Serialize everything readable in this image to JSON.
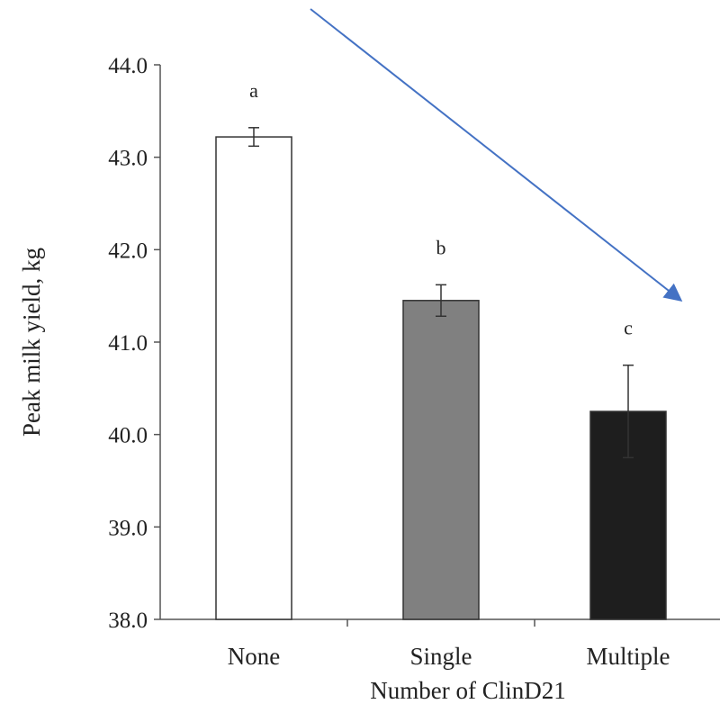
{
  "chart_data": {
    "type": "bar",
    "title": "",
    "xlabel": "Number of ClinD21",
    "ylabel": "Peak milk yield, kg",
    "ylim": [
      38.0,
      44.0
    ],
    "yticks": [
      "38.0",
      "39.0",
      "40.0",
      "41.0",
      "42.0",
      "43.0",
      "44.0"
    ],
    "categories": [
      "None",
      "Single",
      "Multiple"
    ],
    "values": [
      43.22,
      41.45,
      40.25
    ],
    "errors": [
      0.1,
      0.17,
      0.5
    ],
    "significance": [
      "a",
      "b",
      "c"
    ],
    "colors": [
      "#ffffff",
      "#808080",
      "#1e1e1e"
    ],
    "grid": false,
    "legend": "none",
    "annotation": "trend-arrow",
    "annotation_color": "#4472c4"
  }
}
